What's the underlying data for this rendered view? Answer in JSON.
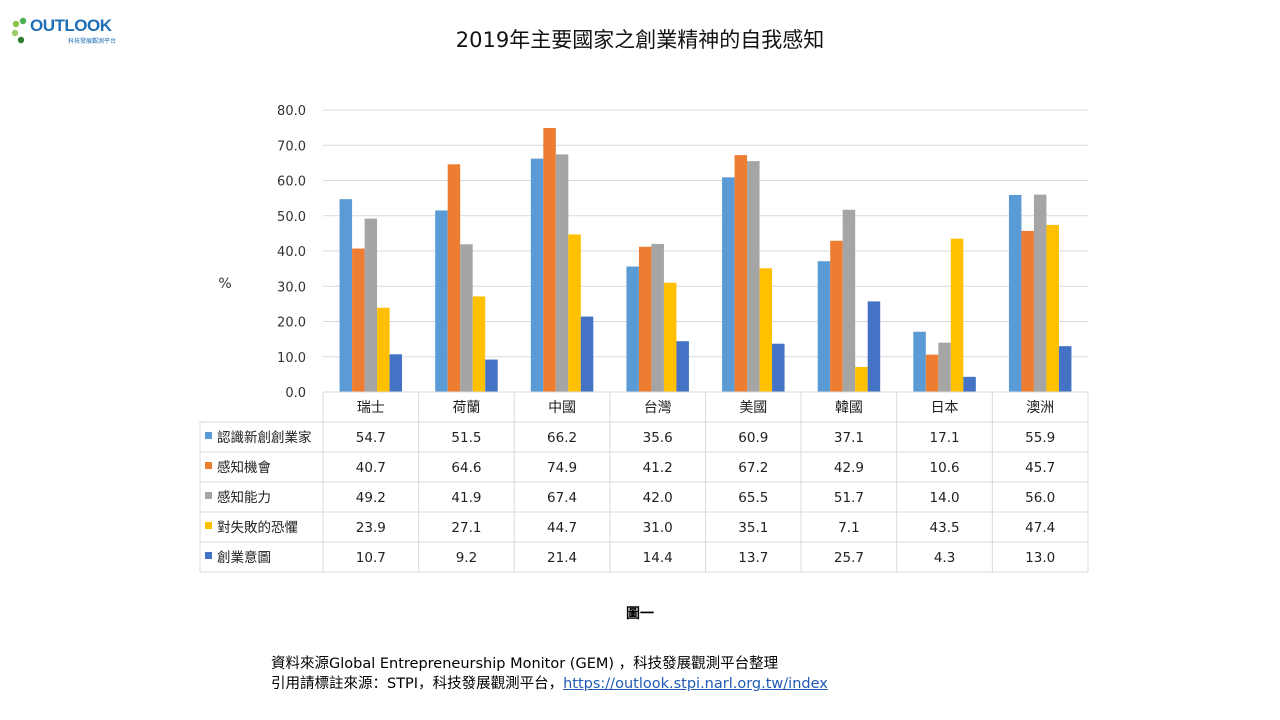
{
  "logo": {
    "name": "OUTLOOK",
    "subtitle": "科技發展觀測平台"
  },
  "page_title": "2019年主要國家之創業精神的自我感知",
  "figure_label": "圖一",
  "footer": {
    "source": "資料來源Global Entrepreneurship Monitor (GEM) ，科技發展觀測平台整理",
    "cite_prefix": "引用請標註來源：STPI，科技發展觀測平台，",
    "cite_link": "https://outlook.stpi.narl.org.tw/index"
  },
  "chart_data": {
    "type": "bar",
    "title": "2019年主要國家之創業精神的自我感知",
    "ylabel": "%",
    "xlabel": "",
    "ylim": [
      0,
      80
    ],
    "yticks": [
      "0.0",
      "10.0",
      "20.0",
      "30.0",
      "40.0",
      "50.0",
      "60.0",
      "70.0",
      "80.0"
    ],
    "grid": true,
    "legend": "data-table",
    "categories": [
      "瑞士",
      "荷蘭",
      "中國",
      "台灣",
      "美國",
      "韓國",
      "日本",
      "澳洲"
    ],
    "series": [
      {
        "name": "認識新創創業家",
        "color": "#5b9bd5",
        "values": [
          54.7,
          51.5,
          66.2,
          35.6,
          60.9,
          37.1,
          17.1,
          55.9
        ],
        "labels": [
          "54.7",
          "51.5",
          "66.2",
          "35.6",
          "60.9",
          "37.1",
          "17.1",
          "55.9"
        ]
      },
      {
        "name": "感知機會",
        "color": "#ed7d31",
        "values": [
          40.7,
          64.6,
          74.9,
          41.2,
          67.2,
          42.9,
          10.6,
          45.7
        ],
        "labels": [
          "40.7",
          "64.6",
          "74.9",
          "41.2",
          "67.2",
          "42.9",
          "10.6",
          "45.7"
        ]
      },
      {
        "name": "感知能力",
        "color": "#a5a5a5",
        "values": [
          49.2,
          41.9,
          67.4,
          42.0,
          65.5,
          51.7,
          14.0,
          56.0
        ],
        "labels": [
          "49.2",
          "41.9",
          "67.4",
          "42.0",
          "65.5",
          "51.7",
          "14.0",
          "56.0"
        ]
      },
      {
        "name": "對失敗的恐懼",
        "color": "#ffc000",
        "values": [
          23.9,
          27.1,
          44.7,
          31.0,
          35.1,
          7.1,
          43.5,
          47.4
        ],
        "labels": [
          "23.9",
          "27.1",
          "44.7",
          "31.0",
          "35.1",
          "7.1",
          "43.5",
          "47.4"
        ]
      },
      {
        "name": "創業意圖",
        "color": "#4472c4",
        "values": [
          10.7,
          9.2,
          21.4,
          14.4,
          13.7,
          25.7,
          4.3,
          13.0
        ],
        "labels": [
          "10.7",
          "9.2",
          "21.4",
          "14.4",
          "13.7",
          "25.7",
          "4.3",
          "13.0"
        ]
      }
    ]
  }
}
